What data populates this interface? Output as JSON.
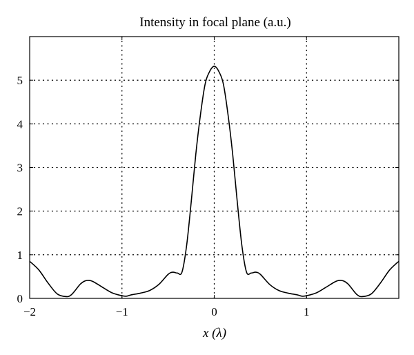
{
  "chart_data": {
    "type": "line",
    "title": "Intensity in focal plane (a.u.)",
    "xlabel": "x (λ)",
    "xlabel_var": "x",
    "xlabel_unit": " (λ)",
    "ylabel": "",
    "xlim": [
      -2,
      2
    ],
    "ylim": [
      0,
      6
    ],
    "grid": true,
    "grid_style": "dotted",
    "x_ticks": [
      -2,
      -1,
      0,
      1
    ],
    "x_tick_labels": [
      "−2",
      "−1",
      "0",
      "1"
    ],
    "y_ticks": [
      0,
      1,
      2,
      3,
      4,
      5
    ],
    "y_tick_labels": [
      "0",
      "1",
      "2",
      "3",
      "4",
      "5"
    ],
    "series": [
      {
        "color": "#000000",
        "x": [
          -2.0,
          -1.9,
          -1.8,
          -1.7,
          -1.6,
          -1.55,
          -1.5,
          -1.45,
          -1.4,
          -1.35,
          -1.3,
          -1.2,
          -1.1,
          -1.0,
          -0.95,
          -0.9,
          -0.8,
          -0.7,
          -0.6,
          -0.5,
          -0.45,
          -0.4,
          -0.35,
          -0.3,
          -0.25,
          -0.2,
          -0.15,
          -0.1,
          -0.05,
          0.0,
          0.05,
          0.1,
          0.15,
          0.2,
          0.25,
          0.3,
          0.35,
          0.4,
          0.45,
          0.5,
          0.6,
          0.7,
          0.8,
          0.9,
          0.95,
          1.0,
          1.1,
          1.2,
          1.3,
          1.35,
          1.4,
          1.45,
          1.5,
          1.55,
          1.6,
          1.7,
          1.8,
          1.9,
          2.0
        ],
        "y": [
          0.85,
          0.65,
          0.35,
          0.1,
          0.04,
          0.08,
          0.2,
          0.33,
          0.4,
          0.41,
          0.37,
          0.24,
          0.12,
          0.06,
          0.05,
          0.08,
          0.12,
          0.18,
          0.32,
          0.55,
          0.6,
          0.58,
          0.6,
          1.2,
          2.2,
          3.3,
          4.2,
          4.9,
          5.2,
          5.32,
          5.2,
          4.9,
          4.2,
          3.3,
          2.2,
          1.2,
          0.6,
          0.58,
          0.6,
          0.55,
          0.32,
          0.18,
          0.12,
          0.08,
          0.05,
          0.06,
          0.12,
          0.24,
          0.37,
          0.41,
          0.4,
          0.33,
          0.2,
          0.08,
          0.04,
          0.1,
          0.35,
          0.65,
          0.85
        ]
      }
    ]
  }
}
